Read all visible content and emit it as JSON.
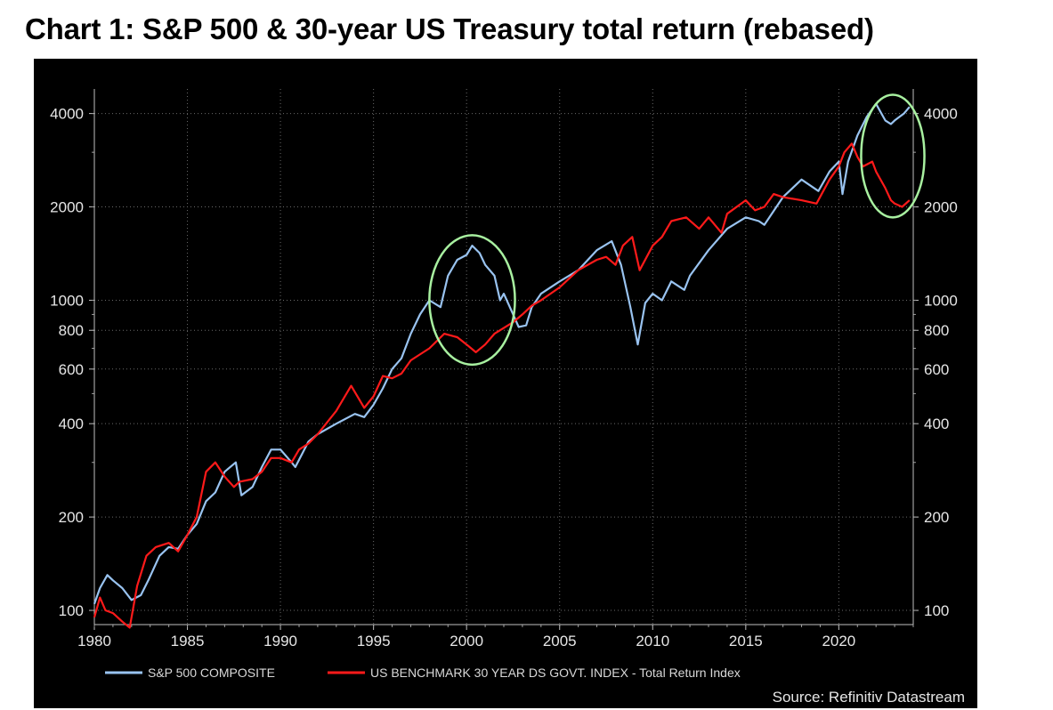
{
  "chart_data": {
    "type": "line",
    "title": "Chart 1: S&P 500 & 30-year US Treasury total return (rebased)",
    "xlabel": "",
    "ylabel": "",
    "yscale": "log",
    "xlim": [
      1980,
      2024
    ],
    "ylim": [
      90,
      4800
    ],
    "x_ticks": [
      "1980",
      "1985",
      "1990",
      "1995",
      "2000",
      "2005",
      "2010",
      "2015",
      "2020"
    ],
    "y_ticks_left": [
      "100",
      "200",
      "400",
      "600",
      "800",
      "1000",
      "2000",
      "4000"
    ],
    "y_ticks_right": [
      "100",
      "200",
      "400",
      "600",
      "800",
      "1000",
      "2000",
      "4000"
    ],
    "grid": true,
    "legend_position": "bottom-left",
    "source": "Source: Refinitiv Datastream",
    "annotations": [
      "circle-around-2000-divergence",
      "circle-around-2022-divergence"
    ],
    "series": [
      {
        "name": "S&P 500 COMPOSITE",
        "color": "#99c3f0",
        "x": [
          1980.0,
          1980.3,
          1980.7,
          1981.0,
          1981.5,
          1982.0,
          1982.5,
          1982.9,
          1983.5,
          1984.0,
          1984.5,
          1985.0,
          1985.5,
          1986.0,
          1986.5,
          1987.0,
          1987.6,
          1987.9,
          1988.5,
          1989.0,
          1989.5,
          1990.0,
          1990.6,
          1990.8,
          1991.5,
          1992.0,
          1993.0,
          1994.0,
          1994.5,
          1995.0,
          1995.5,
          1996.0,
          1996.5,
          1997.0,
          1997.5,
          1998.0,
          1998.6,
          1999.0,
          1999.5,
          2000.0,
          2000.3,
          2000.7,
          2001.0,
          2001.5,
          2001.8,
          2002.0,
          2002.5,
          2002.8,
          2003.2,
          2003.5,
          2004.0,
          2005.0,
          2006.0,
          2007.0,
          2007.8,
          2008.3,
          2008.8,
          2009.2,
          2009.6,
          2010.0,
          2010.5,
          2011.0,
          2011.7,
          2012.0,
          2013.0,
          2014.0,
          2015.0,
          2015.7,
          2016.0,
          2017.0,
          2018.0,
          2018.9,
          2019.5,
          2020.0,
          2020.2,
          2020.5,
          2021.0,
          2021.5,
          2022.0,
          2022.5,
          2022.8,
          2023.0,
          2023.5,
          2023.8
        ],
        "values": [
          105,
          118,
          130,
          125,
          118,
          108,
          112,
          125,
          150,
          160,
          158,
          175,
          190,
          225,
          240,
          280,
          300,
          235,
          250,
          290,
          330,
          330,
          300,
          290,
          350,
          370,
          400,
          430,
          420,
          460,
          520,
          600,
          650,
          780,
          900,
          1000,
          950,
          1200,
          1350,
          1400,
          1500,
          1420,
          1300,
          1200,
          1000,
          1050,
          900,
          820,
          830,
          950,
          1050,
          1150,
          1250,
          1450,
          1550,
          1300,
          950,
          720,
          980,
          1050,
          1000,
          1150,
          1080,
          1200,
          1450,
          1700,
          1850,
          1800,
          1750,
          2150,
          2450,
          2250,
          2600,
          2800,
          2200,
          2800,
          3400,
          3900,
          4300,
          3800,
          3700,
          3800,
          4000,
          4200
        ]
      },
      {
        "name": "US BENCHMARK 30 YEAR DS GOVT. INDEX - Total Return Index",
        "color": "#ff1a1a",
        "x": [
          1980.0,
          1980.3,
          1980.6,
          1981.0,
          1981.5,
          1981.9,
          1982.3,
          1982.8,
          1983.3,
          1984.0,
          1984.5,
          1985.0,
          1985.5,
          1986.0,
          1986.5,
          1987.0,
          1987.5,
          1987.8,
          1988.5,
          1989.0,
          1989.5,
          1990.0,
          1990.6,
          1991.0,
          1991.5,
          1992.0,
          1993.0,
          1993.8,
          1994.5,
          1995.0,
          1995.5,
          1996.0,
          1996.5,
          1997.0,
          1998.0,
          1998.8,
          1999.5,
          2000.0,
          2000.5,
          2001.0,
          2001.5,
          2001.8,
          2002.5,
          2003.0,
          2003.5,
          2004.0,
          2005.0,
          2006.0,
          2007.0,
          2007.5,
          2008.0,
          2008.4,
          2008.9,
          2009.3,
          2010.0,
          2010.5,
          2011.0,
          2011.8,
          2012.5,
          2013.0,
          2013.7,
          2014.0,
          2015.0,
          2015.5,
          2016.0,
          2016.5,
          2017.0,
          2018.0,
          2018.8,
          2019.5,
          2020.0,
          2020.3,
          2020.7,
          2021.0,
          2021.3,
          2021.8,
          2022.0,
          2022.5,
          2022.8,
          2023.0,
          2023.4,
          2023.8
        ],
        "values": [
          95,
          110,
          100,
          98,
          92,
          88,
          120,
          150,
          160,
          165,
          155,
          175,
          200,
          280,
          300,
          270,
          250,
          260,
          265,
          280,
          310,
          310,
          300,
          330,
          345,
          370,
          440,
          530,
          450,
          490,
          570,
          560,
          580,
          640,
          700,
          780,
          760,
          720,
          680,
          720,
          780,
          800,
          850,
          900,
          960,
          1000,
          1100,
          1250,
          1350,
          1380,
          1300,
          1500,
          1600,
          1250,
          1500,
          1600,
          1800,
          1850,
          1700,
          1850,
          1650,
          1900,
          2100,
          1950,
          2000,
          2200,
          2150,
          2100,
          2050,
          2450,
          2700,
          3000,
          3200,
          2900,
          2700,
          2800,
          2600,
          2300,
          2100,
          2050,
          2000,
          2100
        ]
      }
    ]
  }
}
